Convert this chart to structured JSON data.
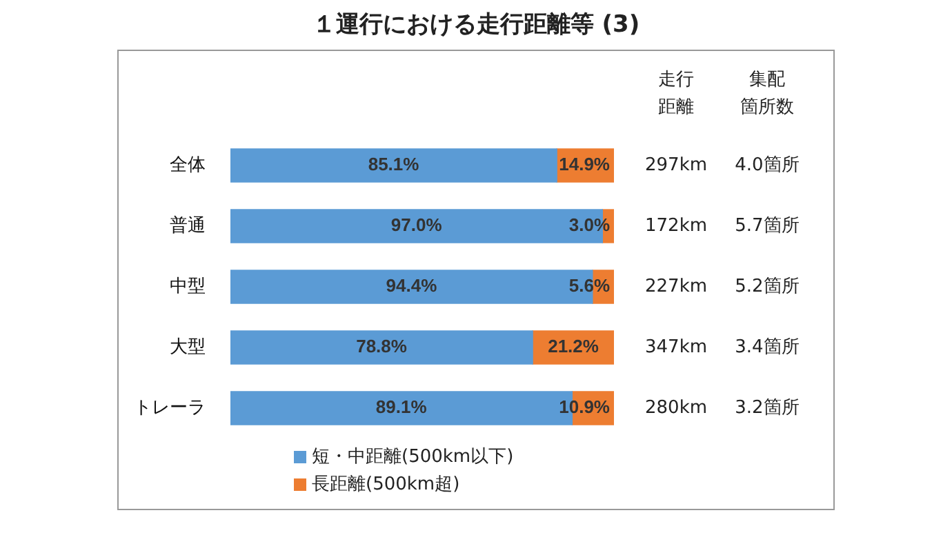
{
  "chart_data": {
    "type": "bar",
    "orientation": "horizontal",
    "stacked": true,
    "title": "１運行における走行距離等 (3)",
    "categories": [
      "全体",
      "普通",
      "中型",
      "大型",
      "トレーラ"
    ],
    "series": [
      {
        "name": "短・中距離(500km以下)",
        "color": "#5b9bd5",
        "values": [
          85.1,
          97.0,
          94.4,
          78.8,
          89.1
        ],
        "value_labels": [
          "85.1%",
          "97.0%",
          "94.4%",
          "78.8%",
          "89.1%"
        ]
      },
      {
        "name": "長距離(500km超)",
        "color": "#ed7d31",
        "values": [
          14.9,
          3.0,
          5.6,
          21.2,
          10.9
        ],
        "value_labels": [
          "14.9%",
          "3.0%",
          "5.6%",
          "21.2%",
          "10.9%"
        ]
      }
    ],
    "xlim": [
      0,
      100
    ],
    "tick_labels": "y",
    "legend": "bottom",
    "annotations": [
      "走行",
      "集配",
      "距離",
      "箇所数",
      "297km",
      "4.0箇所",
      "172km",
      "5.7箇所",
      "227km",
      "5.2箇所",
      "347km",
      "3.4箇所",
      "280km",
      "3.2箇所"
    ]
  }
}
